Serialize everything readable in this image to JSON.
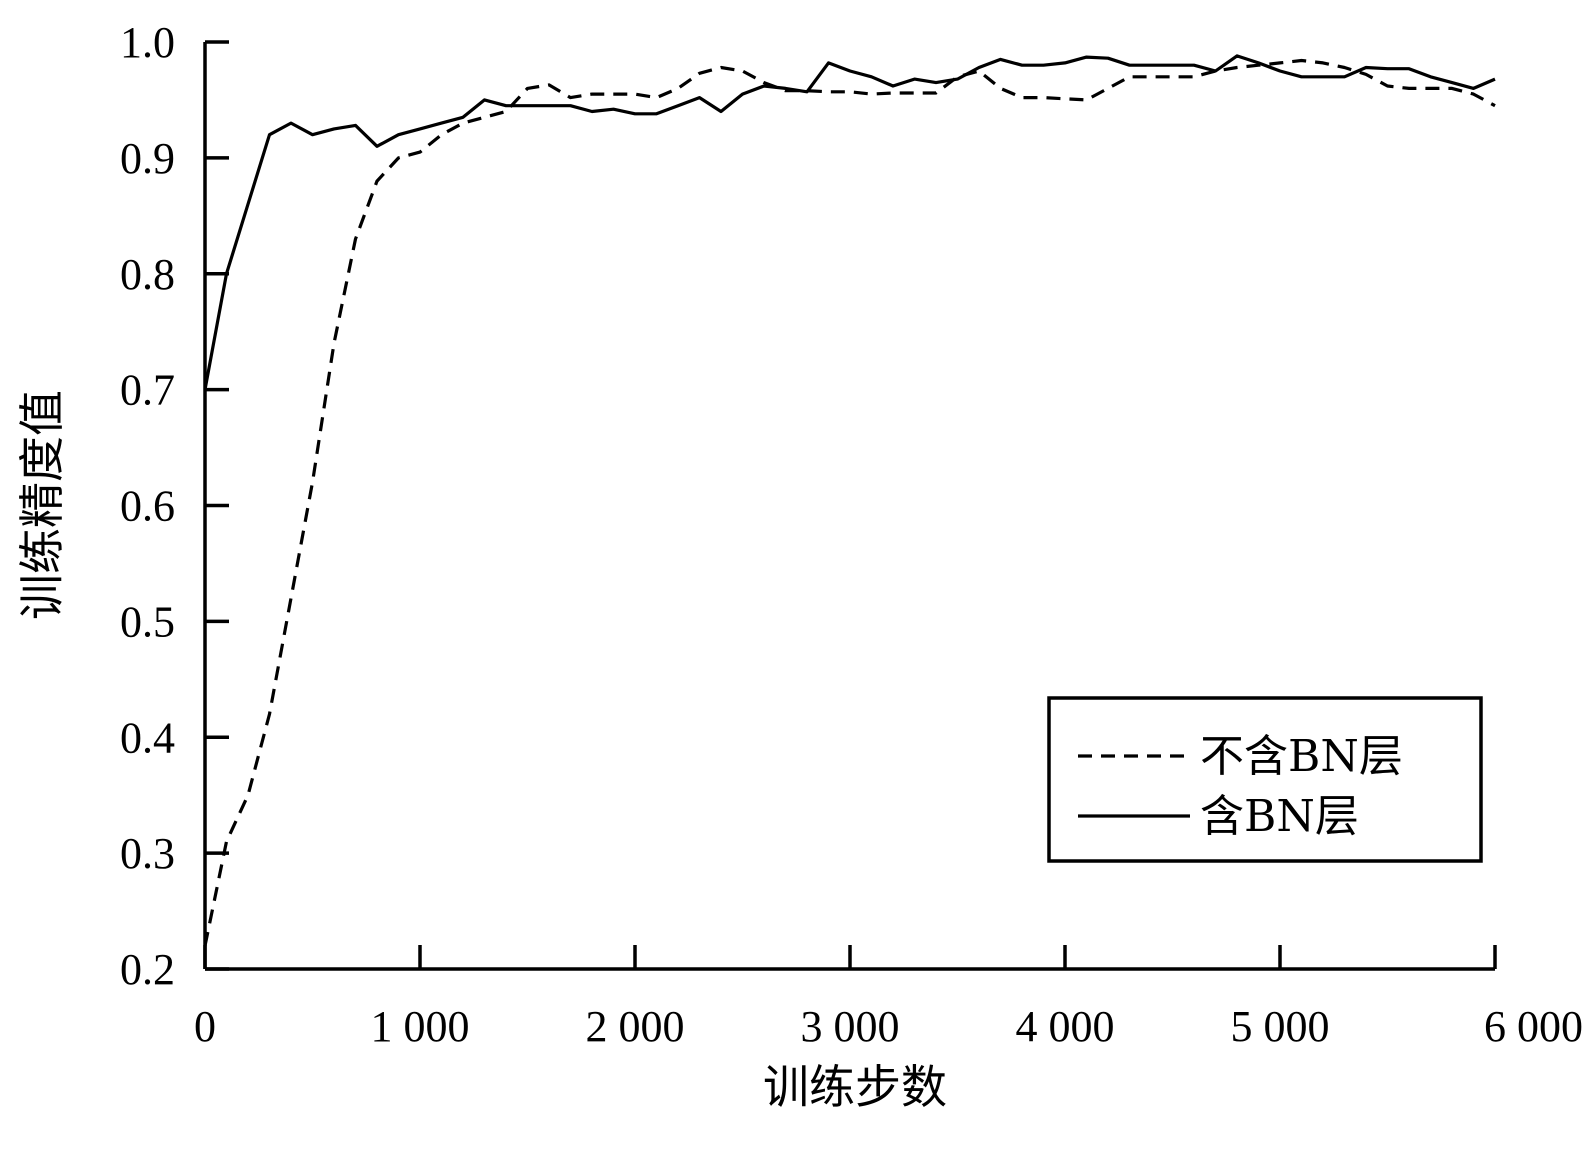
{
  "chart_data": {
    "type": "line",
    "title": "",
    "xlabel": "训练步数",
    "ylabel": "训练精度值",
    "xlim": [
      0,
      6000
    ],
    "ylim": [
      0.2,
      1.0
    ],
    "x_ticks": [
      0,
      1000,
      2000,
      3000,
      4000,
      5000,
      6000
    ],
    "x_tick_labels": [
      "0",
      "1 000",
      "2 000",
      "3 000",
      "4 000",
      "5 000",
      "6 000"
    ],
    "y_ticks": [
      0.2,
      0.3,
      0.4,
      0.5,
      0.6,
      0.7,
      0.8,
      0.9,
      1.0
    ],
    "y_tick_labels": [
      "0.2",
      "0.3",
      "0.4",
      "0.5",
      "0.6",
      "0.7",
      "0.8",
      "0.9",
      "1.0"
    ],
    "grid": false,
    "legend_position": "bottom-right",
    "series": [
      {
        "name": "不含BN层",
        "style": "dashed",
        "color": "#000000",
        "x": [
          0,
          100,
          200,
          300,
          400,
          500,
          600,
          700,
          800,
          900,
          1000,
          1100,
          1200,
          1300,
          1400,
          1500,
          1600,
          1700,
          1800,
          1900,
          2000,
          2100,
          2200,
          2300,
          2400,
          2500,
          2600,
          2700,
          2800,
          2900,
          3000,
          3100,
          3200,
          3300,
          3400,
          3500,
          3600,
          3700,
          3800,
          3900,
          4000,
          4100,
          4200,
          4300,
          4400,
          4500,
          4600,
          4700,
          4800,
          4900,
          5000,
          5100,
          5200,
          5300,
          5400,
          5500,
          5600,
          5700,
          5800,
          5900,
          6000
        ],
        "values": [
          0.22,
          0.31,
          0.35,
          0.42,
          0.52,
          0.62,
          0.74,
          0.83,
          0.88,
          0.9,
          0.905,
          0.92,
          0.93,
          0.935,
          0.94,
          0.96,
          0.963,
          0.952,
          0.955,
          0.955,
          0.955,
          0.952,
          0.96,
          0.973,
          0.978,
          0.975,
          0.965,
          0.958,
          0.958,
          0.957,
          0.957,
          0.955,
          0.956,
          0.956,
          0.956,
          0.97,
          0.975,
          0.96,
          0.952,
          0.952,
          0.951,
          0.95,
          0.96,
          0.97,
          0.97,
          0.97,
          0.97,
          0.975,
          0.978,
          0.98,
          0.982,
          0.984,
          0.982,
          0.978,
          0.972,
          0.962,
          0.96,
          0.96,
          0.96,
          0.955,
          0.945
        ]
      },
      {
        "name": "含BN层",
        "style": "solid",
        "color": "#000000",
        "x": [
          0,
          100,
          200,
          300,
          400,
          500,
          600,
          700,
          800,
          900,
          1000,
          1100,
          1200,
          1300,
          1400,
          1500,
          1600,
          1700,
          1800,
          1900,
          2000,
          2100,
          2200,
          2300,
          2400,
          2500,
          2600,
          2700,
          2800,
          2900,
          3000,
          3100,
          3200,
          3300,
          3400,
          3500,
          3600,
          3700,
          3800,
          3900,
          4000,
          4100,
          4200,
          4300,
          4400,
          4500,
          4600,
          4700,
          4800,
          4900,
          5000,
          5100,
          5200,
          5300,
          5400,
          5500,
          5600,
          5700,
          5800,
          5900,
          6000
        ],
        "values": [
          0.7,
          0.8,
          0.86,
          0.92,
          0.93,
          0.92,
          0.925,
          0.928,
          0.91,
          0.92,
          0.925,
          0.93,
          0.935,
          0.95,
          0.945,
          0.945,
          0.945,
          0.945,
          0.94,
          0.942,
          0.938,
          0.938,
          0.945,
          0.952,
          0.94,
          0.955,
          0.962,
          0.96,
          0.957,
          0.982,
          0.975,
          0.97,
          0.962,
          0.968,
          0.965,
          0.968,
          0.978,
          0.985,
          0.98,
          0.98,
          0.982,
          0.987,
          0.986,
          0.98,
          0.98,
          0.98,
          0.98,
          0.975,
          0.988,
          0.982,
          0.975,
          0.97,
          0.97,
          0.97,
          0.978,
          0.977,
          0.977,
          0.97,
          0.965,
          0.96,
          0.968
        ]
      }
    ]
  }
}
